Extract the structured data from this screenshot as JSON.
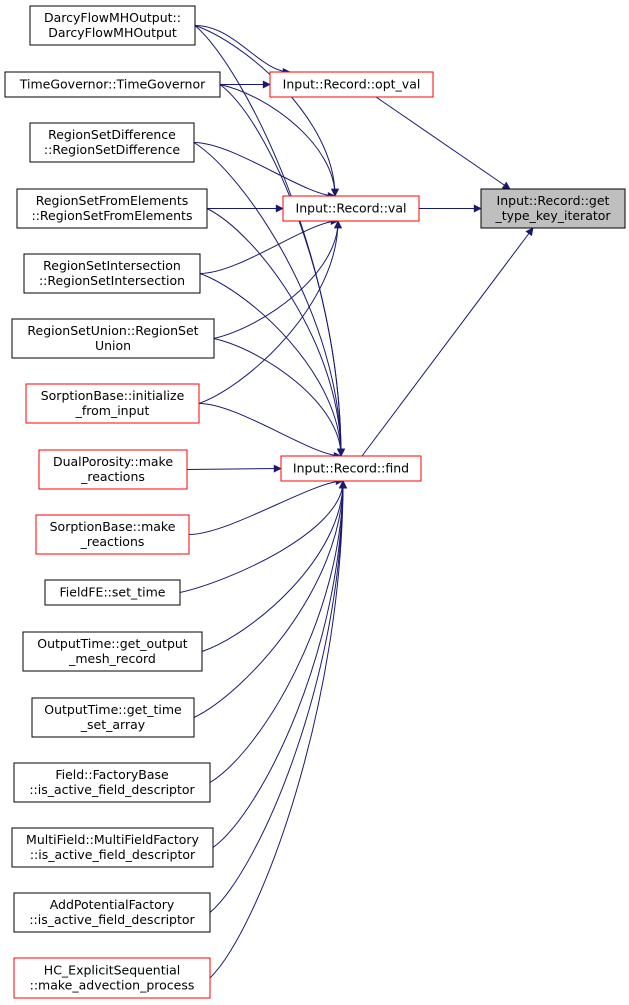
{
  "colors": {
    "edge": "#191970",
    "red_border": "#ff0000",
    "black_border": "#000000",
    "target_fill": "#bfbfbf"
  },
  "nodes": [
    {
      "id": "target",
      "lines": [
        "Input::Record::get",
        "_type_key_iterator"
      ],
      "style": "target"
    },
    {
      "id": "opt_val",
      "lines": [
        "Input::Record::opt_val"
      ],
      "style": "red"
    },
    {
      "id": "val",
      "lines": [
        "Input::Record::val"
      ],
      "style": "red"
    },
    {
      "id": "find",
      "lines": [
        "Input::Record::find"
      ],
      "style": "red"
    },
    {
      "id": "darcy",
      "lines": [
        "DarcyFlowMHOutput::",
        "DarcyFlowMHOutput"
      ],
      "style": "black"
    },
    {
      "id": "timegov",
      "lines": [
        "TimeGovernor::TimeGovernor"
      ],
      "style": "black"
    },
    {
      "id": "rsdiff",
      "lines": [
        "RegionSetDifference",
        "::RegionSetDifference"
      ],
      "style": "black"
    },
    {
      "id": "rsfrom",
      "lines": [
        "RegionSetFromElements",
        "::RegionSetFromElements"
      ],
      "style": "black"
    },
    {
      "id": "rsinter",
      "lines": [
        "RegionSetIntersection",
        "::RegionSetIntersection"
      ],
      "style": "black"
    },
    {
      "id": "rsunion",
      "lines": [
        "RegionSetUnion::RegionSet",
        "Union"
      ],
      "style": "black"
    },
    {
      "id": "sorpinit",
      "lines": [
        "SorptionBase::initialize",
        "_from_input"
      ],
      "style": "red"
    },
    {
      "id": "dualmake",
      "lines": [
        "DualPorosity::make",
        "_reactions"
      ],
      "style": "red"
    },
    {
      "id": "sorpmake",
      "lines": [
        "SorptionBase::make",
        "_reactions"
      ],
      "style": "red"
    },
    {
      "id": "fieldfe",
      "lines": [
        "FieldFE::set_time"
      ],
      "style": "black"
    },
    {
      "id": "outmesh",
      "lines": [
        "OutputTime::get_output",
        "_mesh_record"
      ],
      "style": "black"
    },
    {
      "id": "outtime",
      "lines": [
        "OutputTime::get_time",
        "_set_array"
      ],
      "style": "black"
    },
    {
      "id": "fieldfb",
      "lines": [
        "Field::FactoryBase",
        "::is_active_field_descriptor"
      ],
      "style": "black"
    },
    {
      "id": "multifield",
      "lines": [
        "MultiField::MultiFieldFactory",
        "::is_active_field_descriptor"
      ],
      "style": "black"
    },
    {
      "id": "addpot",
      "lines": [
        "AddPotentialFactory",
        "::is_active_field_descriptor"
      ],
      "style": "black"
    },
    {
      "id": "hcexp",
      "lines": [
        "HC_ExplicitSequential",
        "::make_advection_process"
      ],
      "style": "red"
    }
  ],
  "edges": [
    [
      "opt_val",
      "target"
    ],
    [
      "val",
      "target"
    ],
    [
      "find",
      "target"
    ],
    [
      "darcy",
      "opt_val"
    ],
    [
      "timegov",
      "opt_val"
    ],
    [
      "darcy",
      "val"
    ],
    [
      "timegov",
      "val"
    ],
    [
      "rsdiff",
      "val"
    ],
    [
      "rsfrom",
      "val"
    ],
    [
      "rsinter",
      "val"
    ],
    [
      "rsunion",
      "val"
    ],
    [
      "sorpinit",
      "val"
    ],
    [
      "darcy",
      "find"
    ],
    [
      "timegov",
      "find"
    ],
    [
      "rsdiff",
      "find"
    ],
    [
      "rsfrom",
      "find"
    ],
    [
      "rsinter",
      "find"
    ],
    [
      "rsunion",
      "find"
    ],
    [
      "sorpinit",
      "find"
    ],
    [
      "dualmake",
      "find"
    ],
    [
      "sorpmake",
      "find"
    ],
    [
      "fieldfe",
      "find"
    ],
    [
      "outmesh",
      "find"
    ],
    [
      "outtime",
      "find"
    ],
    [
      "fieldfb",
      "find"
    ],
    [
      "multifield",
      "find"
    ],
    [
      "addpot",
      "find"
    ],
    [
      "hcexp",
      "find"
    ]
  ]
}
